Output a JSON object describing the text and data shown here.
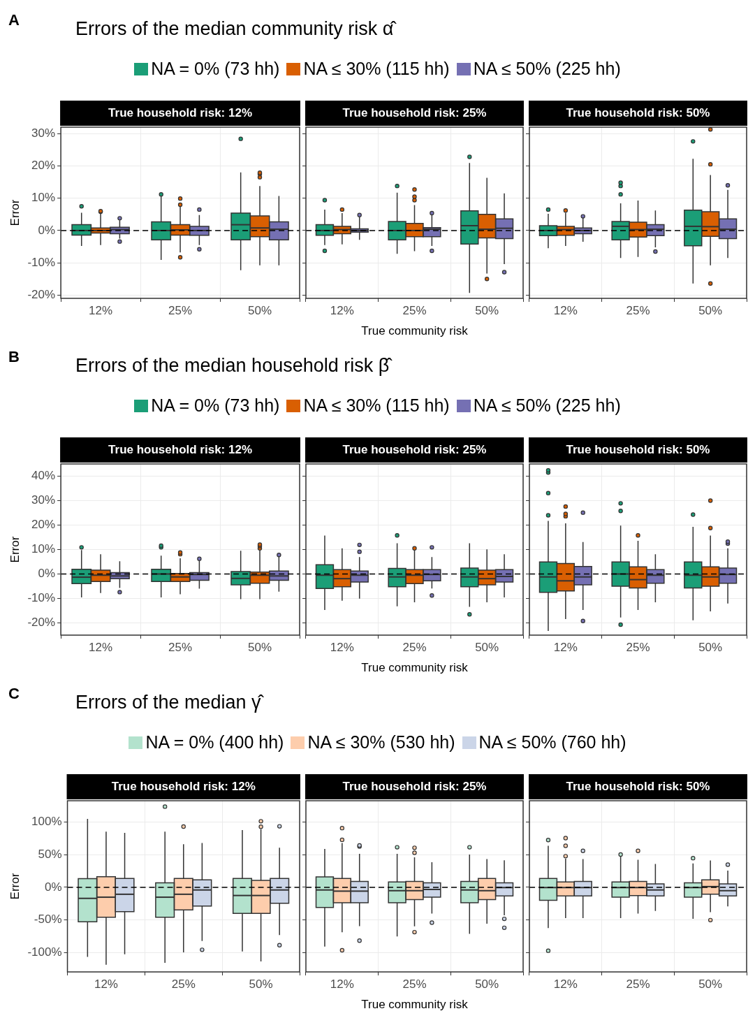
{
  "chart_data": [
    {
      "type": "box",
      "title": "Errors of the median community risk α̂",
      "annotations": [
        "A"
      ],
      "legend": "top",
      "subtitle": "True household risk: 12%",
      "ylabel": "Error",
      "categories": [
        "12%",
        "25%",
        "50%"
      ],
      "ylim": [
        -21,
        32
      ],
      "yticks": [
        {
          "value": -20,
          "label": "-20%"
        },
        {
          "value": -10,
          "label": "-10%"
        },
        {
          "value": 0,
          "label": "0%"
        },
        {
          "value": 10,
          "label": "10%"
        },
        {
          "value": 20,
          "label": "20%"
        },
        {
          "value": 30,
          "label": "30%"
        }
      ],
      "grid": true,
      "ref_lines": [
        {
          "axis": "y",
          "value": 0,
          "line_style": "dashed",
          "color": "#000000"
        }
      ],
      "series": [
        {
          "name": "NA = 0% (73 hh)",
          "color": "#1b9e77",
          "boxes": [
            {
              "low": -4.8,
              "q1": -1.4,
              "median": 0,
              "q3": 1.8,
              "high": 5.5,
              "outliers": [
                7.5
              ]
            },
            {
              "low": -9.1,
              "q1": -2.9,
              "median": 0,
              "q3": 2.7,
              "high": 10.8,
              "outliers": [
                11.2
              ]
            },
            {
              "low": -12.3,
              "q1": -2.9,
              "median": 1.8,
              "q3": 5.4,
              "high": 18,
              "outliers": [
                28.4
              ]
            }
          ]
        },
        {
          "name": "NA ≤ 30% (115 hh)",
          "color": "#d95f02",
          "boxes": [
            {
              "low": -4.5,
              "q1": -0.8,
              "median": 0,
              "q3": 0.8,
              "high": 5.5,
              "outliers": [
                5.8,
                6
              ]
            },
            {
              "low": -6.8,
              "q1": -1.4,
              "median": 0.2,
              "q3": 1.8,
              "high": 7.5,
              "outliers": [
                8,
                9.9,
                -8.3
              ]
            },
            {
              "low": -10.8,
              "q1": -1.9,
              "median": 0.8,
              "q3": 4.5,
              "high": 13.8,
              "outliers": [
                16.5,
                17.5,
                17.9
              ]
            }
          ]
        },
        {
          "name": "NA ≤ 50% (225 hh)",
          "color": "#7570b3",
          "boxes": [
            {
              "low": -2.5,
              "q1": -1,
              "median": 0.3,
              "q3": 1,
              "high": 3.2,
              "outliers": [
                3.8,
                -3.4
              ]
            },
            {
              "low": -4.5,
              "q1": -1.5,
              "median": 0,
              "q3": 1.3,
              "high": 4.8,
              "outliers": [
                6.5,
                -5.8
              ]
            },
            {
              "low": -10.8,
              "q1": -2.9,
              "median": 0.4,
              "q3": 2.7,
              "high": 10.7
            }
          ]
        }
      ]
    },
    {
      "type": "box",
      "subtitle": "True household risk: 25%",
      "xlabel": "True community risk",
      "tick_labels": "x",
      "categories": [
        "12%",
        "25%",
        "50%"
      ],
      "ylim": [
        -21,
        32
      ],
      "yticks": [
        {
          "value": -20,
          "label": null
        },
        {
          "value": -10,
          "label": null
        },
        {
          "value": 0,
          "label": null
        },
        {
          "value": 10,
          "label": null
        },
        {
          "value": 20,
          "label": null
        },
        {
          "value": 30,
          "label": null
        }
      ],
      "grid": true,
      "ref_lines": [
        {
          "axis": "y",
          "value": 0,
          "line_style": "dashed",
          "color": "#000000"
        }
      ],
      "series": [
        {
          "color": "#1b9e77",
          "boxes": [
            {
              "low": -4.5,
              "q1": -1.5,
              "median": 0,
              "q3": 1.8,
              "high": 6.5,
              "outliers": [
                9.4,
                -6.3
              ]
            },
            {
              "low": -7.2,
              "q1": -2.9,
              "median": 0,
              "q3": 2.8,
              "high": 11.7,
              "outliers": [
                13.8
              ]
            },
            {
              "low": -19.3,
              "q1": -4.2,
              "median": 1.5,
              "q3": 6.1,
              "high": 20.9,
              "outliers": [
                22.8
              ]
            }
          ]
        },
        {
          "color": "#d95f02",
          "boxes": [
            {
              "low": -4.3,
              "q1": -1,
              "median": 0.3,
              "q3": 1.3,
              "high": 5.4,
              "outliers": [
                6.5
              ]
            },
            {
              "low": -6.4,
              "q1": -1.9,
              "median": 0,
              "q3": 2.2,
              "high": 7.9,
              "outliers": [
                9.4,
                10.5,
                12.7
              ]
            },
            {
              "low": -13.3,
              "q1": -2.3,
              "median": 0.4,
              "q3": 5,
              "high": 16.3,
              "outliers": [
                -15
              ]
            }
          ]
        },
        {
          "color": "#7570b3",
          "boxes": [
            {
              "low": -2.9,
              "q1": -0.5,
              "median": 0,
              "q3": 0.5,
              "high": 4.2,
              "outliers": [
                4.8
              ]
            },
            {
              "low": -4.8,
              "q1": -1.9,
              "median": 0.4,
              "q3": 0.9,
              "high": 4.8,
              "outliers": [
                5.4,
                -6.3
              ]
            },
            {
              "low": -10.4,
              "q1": -2.5,
              "median": 0.7,
              "q3": 3.6,
              "high": 11.5,
              "outliers": [
                -12.9
              ]
            }
          ]
        }
      ]
    },
    {
      "type": "box",
      "subtitle": "True household risk: 50%",
      "tick_labels": "x",
      "categories": [
        "12%",
        "25%",
        "50%"
      ],
      "ylim": [
        -21,
        32
      ],
      "yticks": [
        {
          "value": -20,
          "label": null
        },
        {
          "value": -10,
          "label": null
        },
        {
          "value": 0,
          "label": null
        },
        {
          "value": 10,
          "label": null
        },
        {
          "value": 20,
          "label": null
        },
        {
          "value": 30,
          "label": null
        }
      ],
      "grid": true,
      "ref_lines": [
        {
          "axis": "y",
          "value": 0,
          "line_style": "dashed",
          "color": "#000000"
        }
      ],
      "series": [
        {
          "color": "#1b9e77",
          "boxes": [
            {
              "low": -5.5,
              "q1": -1.6,
              "median": 0,
              "q3": 1.5,
              "high": 5.2,
              "outliers": [
                6.5
              ]
            },
            {
              "low": -8.5,
              "q1": -2.9,
              "median": 1.3,
              "q3": 2.8,
              "high": 8.4,
              "outliers": [
                11.2,
                13.8,
                14.8
              ]
            },
            {
              "low": -16.4,
              "q1": -4.7,
              "median": 1.3,
              "q3": 6.3,
              "high": 22.2,
              "outliers": [
                27.6
              ]
            }
          ]
        },
        {
          "color": "#d95f02",
          "boxes": [
            {
              "low": -4.8,
              "q1": -1.5,
              "median": 0.3,
              "q3": 1.3,
              "high": 5.5,
              "outliers": [
                6.2
              ]
            },
            {
              "low": -8.2,
              "q1": -2,
              "median": 0.3,
              "q3": 2.6,
              "high": 9.3
            },
            {
              "low": -10.8,
              "q1": -1.8,
              "median": 1.2,
              "q3": 5.8,
              "high": 17.2,
              "outliers": [
                31.3,
                20.5,
                -16.4
              ]
            }
          ]
        },
        {
          "color": "#7570b3",
          "boxes": [
            {
              "low": -3.5,
              "q1": -1,
              "median": 0,
              "q3": 0.8,
              "high": 4,
              "outliers": [
                4.4
              ]
            },
            {
              "low": -5.2,
              "q1": -1.6,
              "median": 0.4,
              "q3": 1.8,
              "high": 6.2,
              "outliers": [
                -6.5
              ]
            },
            {
              "low": -8.5,
              "q1": -2.5,
              "median": 0.4,
              "q3": 3.6,
              "high": 12.6,
              "outliers": [
                14
              ]
            }
          ]
        }
      ]
    },
    {
      "type": "box",
      "title": "Errors of the median household risk β̂",
      "annotations": [
        "B"
      ],
      "legend": "top",
      "subtitle": "True household risk: 12%",
      "ylabel": "Error",
      "categories": [
        "12%",
        "25%",
        "50%"
      ],
      "ylim": [
        -25,
        45
      ],
      "yticks": [
        {
          "value": -20,
          "label": "-20%"
        },
        {
          "value": -10,
          "label": "-10%"
        },
        {
          "value": 0,
          "label": "0%"
        },
        {
          "value": 10,
          "label": "10%"
        },
        {
          "value": 20,
          "label": "20%"
        },
        {
          "value": 30,
          "label": "30%"
        },
        {
          "value": 40,
          "label": "40%"
        }
      ],
      "grid": true,
      "ref_lines": [
        {
          "axis": "y",
          "value": 0,
          "line_style": "dashed",
          "color": "#000000"
        }
      ],
      "series": [
        {
          "name": "NA = 0% (73 hh)",
          "color": "#1b9e77",
          "boxes": [
            {
              "low": -9.6,
              "q1": -3.9,
              "median": -1.3,
              "q3": 1.9,
              "high": 9.8,
              "outliers": [
                10.9
              ]
            },
            {
              "low": -9.6,
              "q1": -3.1,
              "median": 0,
              "q3": 1.9,
              "high": 7.5,
              "outliers": [
                10.9,
                11.6
              ]
            },
            {
              "low": -10.3,
              "q1": -4.4,
              "median": -1.8,
              "q3": 1,
              "high": 9.5
            }
          ]
        },
        {
          "name": "NA ≤ 30% (115 hh)",
          "color": "#d95f02",
          "boxes": [
            {
              "low": -7.8,
              "q1": -3.1,
              "median": -0.5,
              "q3": 1.6,
              "high": 8.1
            },
            {
              "low": -8.3,
              "q1": -3.1,
              "median": -1.2,
              "q3": 0.2,
              "high": 6.4,
              "outliers": [
                8.1,
                8.8
              ]
            },
            {
              "low": -10.3,
              "q1": -3.8,
              "median": -0.5,
              "q3": 0.8,
              "high": 9.8,
              "outliers": [
                10.5,
                11.4,
                12
              ]
            }
          ]
        },
        {
          "name": "NA ≤ 50% (225 hh)",
          "color": "#7570b3",
          "boxes": [
            {
              "low": -5.7,
              "q1": -1.9,
              "median": -0.8,
              "q3": 0.6,
              "high": 5.2,
              "outliers": [
                -7.4
              ]
            },
            {
              "low": -6,
              "q1": -2.6,
              "median": -0.2,
              "q3": 0.6,
              "high": 5.4,
              "outliers": [
                6.2
              ]
            },
            {
              "low": -7.2,
              "q1": -2.6,
              "median": -0.8,
              "q3": 1.2,
              "high": 7.2,
              "outliers": [
                7.8
              ]
            }
          ]
        }
      ]
    },
    {
      "type": "box",
      "subtitle": "True household risk: 25%",
      "xlabel": "True community risk",
      "tick_labels": "x",
      "categories": [
        "12%",
        "25%",
        "50%"
      ],
      "ylim": [
        -25,
        45
      ],
      "yticks": [
        {
          "value": -20,
          "label": null
        },
        {
          "value": -10,
          "label": null
        },
        {
          "value": 0,
          "label": null
        },
        {
          "value": 10,
          "label": null
        },
        {
          "value": 20,
          "label": null
        },
        {
          "value": 30,
          "label": null
        },
        {
          "value": 40,
          "label": null
        }
      ],
      "grid": true,
      "ref_lines": [
        {
          "axis": "y",
          "value": 0,
          "line_style": "dashed",
          "color": "#000000"
        }
      ],
      "series": [
        {
          "color": "#1b9e77",
          "boxes": [
            {
              "low": -14.7,
              "q1": -5.9,
              "median": -0.5,
              "q3": 3.8,
              "high": 15.7
            },
            {
              "low": -13.2,
              "q1": -5.2,
              "median": -1.2,
              "q3": 2.3,
              "high": 12.6,
              "outliers": [
                15.8
              ]
            },
            {
              "low": -13.4,
              "q1": -5.2,
              "median": -1.2,
              "q3": 2.4,
              "high": 12.6,
              "outliers": [
                -16.5
              ]
            }
          ]
        },
        {
          "color": "#d95f02",
          "boxes": [
            {
              "low": -10.9,
              "q1": -5.2,
              "median": -1.9,
              "q3": 1.8,
              "high": 10.5
            },
            {
              "low": -11.6,
              "q1": -3.9,
              "median": -0.5,
              "q3": 1.8,
              "high": 9.8,
              "outliers": [
                10.5
              ]
            },
            {
              "low": -11.6,
              "q1": -4.4,
              "median": -1.9,
              "q3": 1.6,
              "high": 10.1
            }
          ]
        },
        {
          "color": "#7570b3",
          "boxes": [
            {
              "low": -10.1,
              "q1": -3.3,
              "median": -0.5,
              "q3": 1.2,
              "high": 6.9,
              "outliers": [
                9.1,
                11.9
              ]
            },
            {
              "low": -5.9,
              "q1": -2.8,
              "median": -0.2,
              "q3": 1.8,
              "high": 6.9,
              "outliers": [
                10.9,
                -8.8
              ]
            },
            {
              "low": -9.6,
              "q1": -3.3,
              "median": -1,
              "q3": 1.8,
              "high": 8.1
            }
          ]
        }
      ]
    },
    {
      "type": "box",
      "subtitle": "True household risk: 50%",
      "tick_labels": "x",
      "categories": [
        "12%",
        "25%",
        "50%"
      ],
      "ylim": [
        -25,
        45
      ],
      "yticks": [
        {
          "value": -20,
          "label": null
        },
        {
          "value": -10,
          "label": null
        },
        {
          "value": 0,
          "label": null
        },
        {
          "value": 10,
          "label": null
        },
        {
          "value": 20,
          "label": null
        },
        {
          "value": 30,
          "label": null
        },
        {
          "value": 40,
          "label": null
        }
      ],
      "grid": true,
      "ref_lines": [
        {
          "axis": "y",
          "value": 0,
          "line_style": "dashed",
          "color": "#000000"
        }
      ],
      "series": [
        {
          "color": "#1b9e77",
          "boxes": [
            {
              "low": -23.3,
              "q1": -7.5,
              "median": -1.2,
              "q3": 4.9,
              "high": 21.7,
              "outliers": [
                24,
                33.1,
                41.5,
                42.4
              ]
            },
            {
              "low": -17.8,
              "q1": -5,
              "median": 0,
              "q3": 4.9,
              "high": 19.8,
              "outliers": [
                25.8,
                28.9,
                -20.7
              ]
            },
            {
              "low": -18.9,
              "q1": -5.7,
              "median": -0.5,
              "q3": 4.9,
              "high": 19.3,
              "outliers": [
                24.3
              ]
            }
          ]
        },
        {
          "color": "#d95f02",
          "boxes": [
            {
              "low": -18.4,
              "q1": -6.9,
              "median": -2.8,
              "q3": 4.3,
              "high": 20.7,
              "outliers": [
                23.6,
                24.6,
                27.6
              ]
            },
            {
              "low": -14.7,
              "q1": -5.7,
              "median": -2.3,
              "q3": 2.9,
              "high": 13.6,
              "outliers": [
                15.8
              ]
            },
            {
              "low": -15.3,
              "q1": -5,
              "median": -1.2,
              "q3": 2.9,
              "high": 15.7,
              "outliers": [
                18.8,
                30
              ]
            }
          ]
        },
        {
          "color": "#7570b3",
          "boxes": [
            {
              "low": -14.7,
              "q1": -4.4,
              "median": -1.2,
              "q3": 3.1,
              "high": 13.1,
              "outliers": [
                25.1,
                -19.2
              ]
            },
            {
              "low": -11.6,
              "q1": -3.8,
              "median": -0.5,
              "q3": 1.8,
              "high": 8.1
            },
            {
              "low": -12.1,
              "q1": -3.8,
              "median": -0.2,
              "q3": 2.4,
              "high": 10.5,
              "outliers": [
                12.4,
                13.2
              ]
            }
          ]
        }
      ]
    },
    {
      "type": "box",
      "title": "Errors of the median γ̂",
      "annotations": [
        "C"
      ],
      "legend": "top",
      "subtitle": "True household risk: 12%",
      "ylabel": "Error",
      "categories": [
        "12%",
        "25%",
        "50%"
      ],
      "ylim": [
        -130,
        133
      ],
      "yticks": [
        {
          "value": -100,
          "label": "-100%"
        },
        {
          "value": -50,
          "label": "-50%"
        },
        {
          "value": 0,
          "label": "0%"
        },
        {
          "value": 50,
          "label": "50%"
        },
        {
          "value": 100,
          "label": "100%"
        }
      ],
      "grid": true,
      "ref_lines": [
        {
          "axis": "y",
          "value": 0,
          "line_style": "dashed",
          "color": "#000000"
        }
      ],
      "series": [
        {
          "name": "NA = 0% (400 hh)",
          "color": "#b3e2cd",
          "boxes": [
            {
              "low": -107,
              "q1": -53,
              "median": -17,
              "q3": 13.3,
              "high": 105
            },
            {
              "low": -116,
              "q1": -46,
              "median": -15.2,
              "q3": 7,
              "high": 85.6,
              "outliers": [
                124
              ]
            },
            {
              "low": -98.5,
              "q1": -40,
              "median": -12.6,
              "q3": 13.7,
              "high": 87.8
            }
          ]
        },
        {
          "name": "NA ≤ 30% (530 hh)",
          "color": "#fdcdac",
          "boxes": [
            {
              "low": -119,
              "q1": -46,
              "median": -15.2,
              "q3": 16.3,
              "high": 85.6
            },
            {
              "low": -100,
              "q1": -34.8,
              "median": -10.7,
              "q3": 13.7,
              "high": 66.3,
              "outliers": [
                93.3
              ]
            },
            {
              "low": -114,
              "q1": -40,
              "median": -12.6,
              "q3": 10.7,
              "high": 89.3,
              "outliers": [
                93,
                101.5
              ]
            }
          ]
        },
        {
          "name": "NA ≤ 50% (760 hh)",
          "color": "#cbd5e8",
          "boxes": [
            {
              "low": -103,
              "q1": -37.4,
              "median": -10.7,
              "q3": 13.7,
              "high": 83.7
            },
            {
              "low": -82.6,
              "q1": -28.9,
              "median": -4.1,
              "q3": 11.5,
              "high": 68,
              "outliers": [
                -96
              ]
            },
            {
              "low": -73.3,
              "q1": -24.4,
              "median": -4.1,
              "q3": 13.7,
              "high": 60.7,
              "outliers": [
                93.7,
                -89
              ]
            }
          ]
        }
      ]
    },
    {
      "type": "box",
      "subtitle": "True household risk: 25%",
      "xlabel": "True community risk",
      "tick_labels": "x",
      "categories": [
        "12%",
        "25%",
        "50%"
      ],
      "ylim": [
        -130,
        133
      ],
      "yticks": [
        {
          "value": -100,
          "label": null
        },
        {
          "value": -50,
          "label": null
        },
        {
          "value": 0,
          "label": null
        },
        {
          "value": 50,
          "label": null
        },
        {
          "value": 100,
          "label": null
        }
      ],
      "grid": true,
      "ref_lines": [
        {
          "axis": "y",
          "value": 0,
          "line_style": "dashed",
          "color": "#000000"
        }
      ],
      "series": [
        {
          "color": "#b3e2cd",
          "boxes": [
            {
              "low": -91,
              "q1": -31,
              "median": -4.1,
              "q3": 15.9,
              "high": 59
            },
            {
              "low": -75.6,
              "q1": -23.7,
              "median": -5.2,
              "q3": 8.1,
              "high": 51.5,
              "outliers": [
                61.5
              ]
            },
            {
              "low": -71.5,
              "q1": -23.7,
              "median": -4.1,
              "q3": 8.9,
              "high": 50.4,
              "outliers": [
                61.5
              ]
            }
          ]
        },
        {
          "color": "#fdcdac",
          "boxes": [
            {
              "low": -69,
              "q1": -23.7,
              "median": -5.9,
              "q3": 13.7,
              "high": 68,
              "outliers": [
                73,
                91,
                -96.7
              ]
            },
            {
              "low": -60,
              "q1": -18.9,
              "median": -5.2,
              "q3": 8.9,
              "high": 46,
              "outliers": [
                53,
                60.7,
                -68.9
              ]
            },
            {
              "low": -56,
              "q1": -18.9,
              "median": -5.2,
              "q3": 13.7,
              "high": 43.3
            }
          ]
        },
        {
          "color": "#cbd5e8",
          "boxes": [
            {
              "low": -59.6,
              "q1": -23.7,
              "median": -5.9,
              "q3": 8.9,
              "high": 51.5,
              "outliers": [
                62.6,
                64.4,
                -82
              ]
            },
            {
              "low": -40.4,
              "q1": -15.2,
              "median": -3.3,
              "q3": 7,
              "high": 38.5,
              "outliers": [
                -54.4
              ]
            },
            {
              "low": -43,
              "q1": -13.3,
              "median": -0.4,
              "q3": 7,
              "high": 41.5,
              "outliers": [
                -48.5,
                -62.2
              ]
            }
          ]
        }
      ]
    },
    {
      "type": "box",
      "subtitle": "True household risk: 50%",
      "tick_labels": "x",
      "categories": [
        "12%",
        "25%",
        "50%"
      ],
      "ylim": [
        -130,
        133
      ],
      "yticks": [
        {
          "value": -100,
          "label": null
        },
        {
          "value": -50,
          "label": null
        },
        {
          "value": 0,
          "label": null
        },
        {
          "value": 50,
          "label": null
        },
        {
          "value": 100,
          "label": null
        }
      ],
      "grid": true,
      "ref_lines": [
        {
          "axis": "y",
          "value": 0,
          "line_style": "dashed",
          "color": "#000000"
        }
      ],
      "series": [
        {
          "color": "#b3e2cd",
          "boxes": [
            {
              "low": -62.6,
              "q1": -20,
              "median": -0.4,
              "q3": 13.7,
              "high": 63.7,
              "outliers": [
                72.6,
                -97.4
              ]
            },
            {
              "low": -47.4,
              "q1": -15.2,
              "median": -0.4,
              "q3": 8.1,
              "high": 47.8,
              "outliers": [
                50.4
              ]
            },
            {
              "low": -48.5,
              "q1": -15.2,
              "median": -0.4,
              "q3": 7,
              "high": 36.7,
              "outliers": [
                44.8
              ]
            }
          ]
        },
        {
          "color": "#fdcdac",
          "boxes": [
            {
              "low": -47.4,
              "q1": -13.3,
              "median": -0.4,
              "q3": 8.1,
              "high": 44,
              "outliers": [
                47.8,
                63.7,
                75.6
              ]
            },
            {
              "low": -40.4,
              "q1": -12.6,
              "median": -0.4,
              "q3": 8.9,
              "high": 42.2,
              "outliers": [
                56
              ]
            },
            {
              "low": -38.1,
              "q1": -10.7,
              "median": 1.1,
              "q3": 11.5,
              "high": 41.1,
              "outliers": [
                -50.4
              ]
            }
          ]
        },
        {
          "color": "#cbd5e8",
          "boxes": [
            {
              "low": -47.4,
              "q1": -13.3,
              "median": -0.4,
              "q3": 8.9,
              "high": 43.3,
              "outliers": [
                56
              ]
            },
            {
              "low": -36.3,
              "q1": -13.3,
              "median": -4.1,
              "q3": 5.2,
              "high": 35.9
            },
            {
              "low": -29.3,
              "q1": -13.3,
              "median": -5.2,
              "q3": 5.2,
              "high": 25.6,
              "outliers": [
                34.8
              ]
            }
          ]
        }
      ]
    }
  ]
}
